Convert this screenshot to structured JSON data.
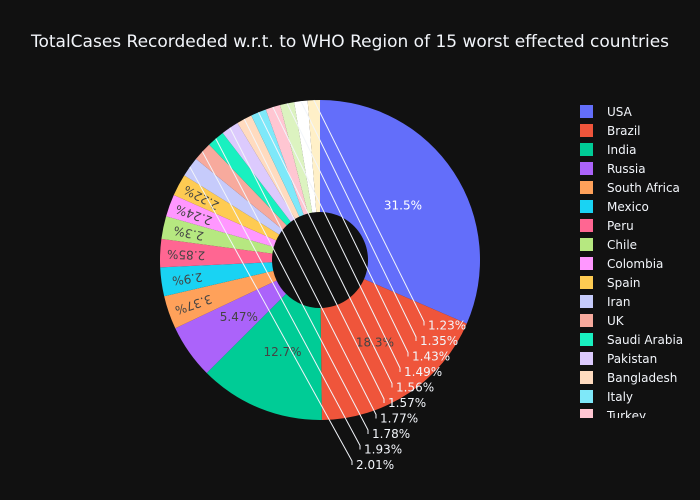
{
  "chart_data": {
    "type": "pie",
    "hole": true,
    "title": "TotalCases Recordeded w.r.t. to WHO Region of 15 worst effected countries",
    "legend_position": "right",
    "slices": [
      {
        "label": "USA",
        "percent": 31.5,
        "text": "31.5%",
        "color": "#636efa"
      },
      {
        "label": "Brazil",
        "percent": 18.3,
        "text": "18.3%",
        "color": "#ef553b"
      },
      {
        "label": "India",
        "percent": 12.7,
        "text": "12.7%",
        "color": "#00cc96"
      },
      {
        "label": "Russia",
        "percent": 5.47,
        "text": "5.47%",
        "color": "#ab63fa"
      },
      {
        "label": "South Africa",
        "percent": 3.37,
        "text": "3.37%",
        "color": "#ffa15a"
      },
      {
        "label": "Mexico",
        "percent": 2.9,
        "text": "2.9%",
        "color": "#19d3f3"
      },
      {
        "label": "Peru",
        "percent": 2.85,
        "text": "2.85%",
        "color": "#ff6692"
      },
      {
        "label": "Chile",
        "percent": 2.3,
        "text": "2.3%",
        "color": "#b6e880"
      },
      {
        "label": "Colombia",
        "percent": 2.24,
        "text": "2.24%",
        "color": "#ff97ff"
      },
      {
        "label": "Spain",
        "percent": 2.22,
        "text": "2.22%",
        "color": "#fecb52"
      },
      {
        "label": "Iran",
        "percent": 2.01,
        "text": "2.01%",
        "color": "#c6cbfb"
      },
      {
        "label": "UK",
        "percent": 1.93,
        "text": "1.93%",
        "color": "#f7aa9d"
      },
      {
        "label": "Saudi Arabia",
        "percent": 1.78,
        "text": "1.78%",
        "color": "#19f0c0"
      },
      {
        "label": "Pakistan",
        "percent": 1.77,
        "text": "1.77%",
        "color": "#dccafd"
      },
      {
        "label": "Bangladesh",
        "percent": 1.57,
        "text": "1.57%",
        "color": "#ffdbbf"
      },
      {
        "label": "Italy",
        "percent": 1.56,
        "text": "1.56%",
        "color": "#7ee8f9"
      },
      {
        "label": "Turkey",
        "percent": 1.49,
        "text": "1.49%",
        "color": "#ffc6d2"
      },
      {
        "label": "",
        "percent": 1.43,
        "text": "1.43%",
        "color": "#dcf3c0"
      },
      {
        "label": "",
        "percent": 1.35,
        "text": "1.35%",
        "color": "#ffffff"
      },
      {
        "label": "",
        "percent": 1.23,
        "text": "1.23%",
        "color": "#fff0c8"
      }
    ]
  }
}
